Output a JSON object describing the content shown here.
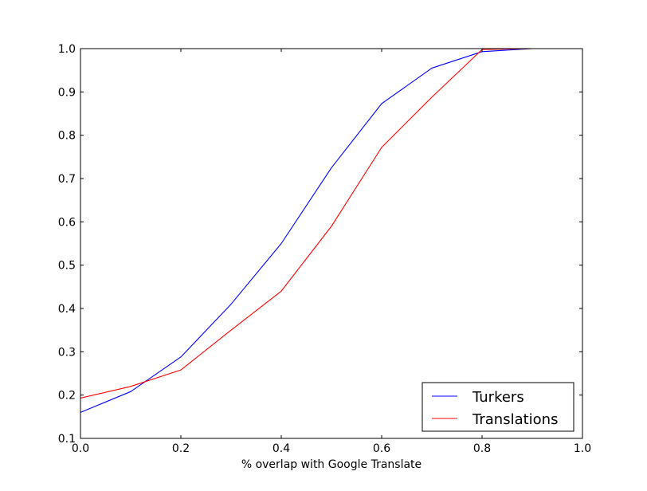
{
  "chart_data": {
    "type": "line",
    "title": "",
    "xlabel": "% overlap with Google Translate",
    "ylabel": "",
    "xlim": [
      0.0,
      1.0
    ],
    "ylim": [
      0.1,
      1.0
    ],
    "x_ticks": [
      0.0,
      0.2,
      0.4,
      0.6,
      0.8,
      1.0
    ],
    "y_ticks": [
      0.1,
      0.2,
      0.3,
      0.4,
      0.5,
      0.6,
      0.7,
      0.8,
      0.9,
      1.0
    ],
    "x_tick_labels": [
      "0.0",
      "0.2",
      "0.4",
      "0.6",
      "0.8",
      "1.0"
    ],
    "y_tick_labels": [
      "0.1",
      "0.2",
      "0.3",
      "0.4",
      "0.5",
      "0.6",
      "0.7",
      "0.8",
      "0.9",
      "1.0"
    ],
    "grid": false,
    "legend_position": "lower-right",
    "series": [
      {
        "name": "Turkers",
        "color": "#0000ff",
        "x": [
          0.0,
          0.1,
          0.2,
          0.3,
          0.4,
          0.5,
          0.6,
          0.7,
          0.8,
          0.9,
          1.0
        ],
        "y": [
          0.16,
          0.208,
          0.288,
          0.41,
          0.55,
          0.725,
          0.873,
          0.955,
          0.993,
          1.0,
          1.0
        ]
      },
      {
        "name": "Translations",
        "color": "#ff0000",
        "x": [
          0.0,
          0.1,
          0.2,
          0.3,
          0.4,
          0.5,
          0.6,
          0.7,
          0.8,
          0.9,
          1.0
        ],
        "y": [
          0.193,
          0.22,
          0.258,
          0.35,
          0.44,
          0.59,
          0.772,
          0.888,
          0.998,
          1.0,
          1.0
        ]
      }
    ]
  }
}
